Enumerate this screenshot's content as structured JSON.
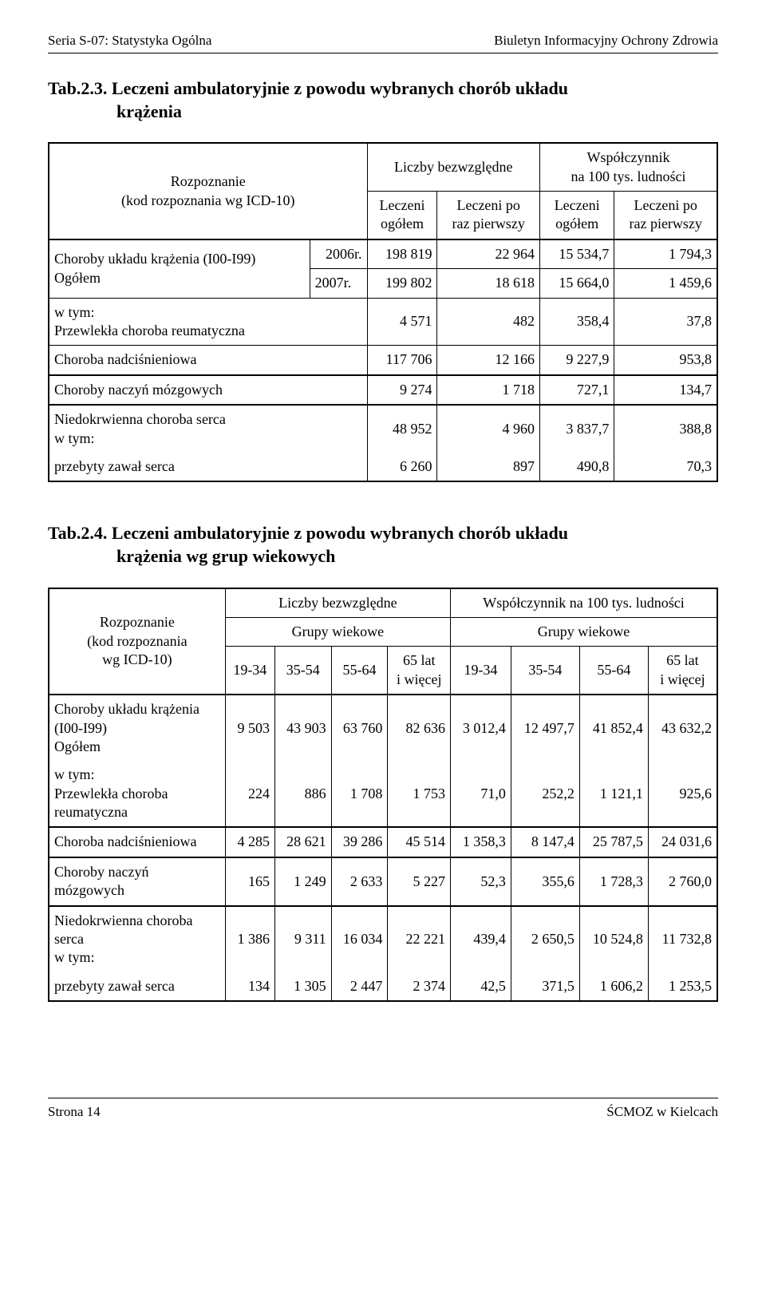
{
  "header": {
    "left": "Seria S-07: Statystyka Ogólna",
    "right": "Biuletyn Informacyjny Ochrony Zdrowia"
  },
  "tab23": {
    "title_line1": "Tab.2.3. Leczeni ambulatoryjnie z powodu wybranych chorób układu",
    "title_line2": "krążenia",
    "col_rozpoznanie1": "Rozpoznanie",
    "col_rozpoznanie2": "(kod rozpoznania wg ICD-10)",
    "col_liczby": "Liczby bezwzględne",
    "col_wsp1": "Współczynnik",
    "col_wsp2": "na 100 tys. ludności",
    "col_leczeni_ogolem1": "Leczeni",
    "col_leczeni_ogolem2": "ogółem",
    "col_leczeni_po1": "Leczeni po",
    "col_leczeni_po2": "raz pierwszy",
    "r1": {
      "label1": "Choroby układu krążenia (I00-I99)",
      "label2": "Ogółem",
      "year1": "2006r.",
      "a1": "198 819",
      "a2": "22 964",
      "a3": "15 534,7",
      "a4": "1 794,3",
      "year2": "2007r.",
      "b1": "199 802",
      "b2": "18 618",
      "b3": "15 664,0",
      "b4": "1 459,6"
    },
    "r2": {
      "label1": "w tym:",
      "label2": "Przewlekła choroba reumatyczna",
      "v1": "4 571",
      "v2": "482",
      "v3": "358,4",
      "v4": "37,8"
    },
    "r3": {
      "label": "Choroba nadciśnieniowa",
      "v1": "117 706",
      "v2": "12 166",
      "v3": "9 227,9",
      "v4": "953,8"
    },
    "r4": {
      "label": "Choroby naczyń mózgowych",
      "v1": "9 274",
      "v2": "1 718",
      "v3": "727,1",
      "v4": "134,7"
    },
    "r5": {
      "label1": "Niedokrwienna choroba serca",
      "label2": "w tym:",
      "v1": "48 952",
      "v2": "4 960",
      "v3": "3 837,7",
      "v4": "388,8"
    },
    "r6": {
      "label": "przebyty zawał serca",
      "v1": "6 260",
      "v2": "897",
      "v3": "490,8",
      "v4": "70,3"
    }
  },
  "tab24": {
    "title_line1": "Tab.2.4. Leczeni ambulatoryjnie z powodu wybranych chorób układu",
    "title_line2": "krążenia wg grup wiekowych",
    "col_rozp1": "Rozpoznanie",
    "col_rozp2": "(kod rozpoznania",
    "col_rozp3": "wg ICD-10)",
    "col_liczby": "Liczby bezwzględne",
    "col_wsp": "Współczynnik na 100 tys. ludności",
    "col_grupy": "Grupy wiekowe",
    "col_grupy2": "Grupy  wiekowe",
    "age1": "19-34",
    "age2": "35-54",
    "age3": "55-64",
    "age4a": "65 lat",
    "age4b": "i więcej",
    "r1": {
      "label1": "Choroby układu krążenia",
      "label2": "(I00-I99)",
      "label3": "Ogółem",
      "v1": "9 503",
      "v2": "43 903",
      "v3": "63 760",
      "v4": "82 636",
      "v5": "3 012,4",
      "v6": "12 497,7",
      "v7": "41 852,4",
      "v8": "43 632,2"
    },
    "r2": {
      "label1": "w tym:",
      "label2": "Przewlekła choroba",
      "label3": "reumatyczna",
      "v1": "224",
      "v2": "886",
      "v3": "1 708",
      "v4": "1 753",
      "v5": "71,0",
      "v6": "252,2",
      "v7": "1 121,1",
      "v8": "925,6"
    },
    "r3": {
      "label": "Choroba nadciśnieniowa",
      "v1": "4 285",
      "v2": "28 621",
      "v3": "39 286",
      "v4": "45 514",
      "v5": "1 358,3",
      "v6": "8 147,4",
      "v7": "25 787,5",
      "v8": "24 031,6"
    },
    "r4": {
      "label1": "Choroby naczyń",
      "label2": "mózgowych",
      "v1": "165",
      "v2": "1 249",
      "v3": "2 633",
      "v4": "5 227",
      "v5": "52,3",
      "v6": "355,6",
      "v7": "1 728,3",
      "v8": "2 760,0"
    },
    "r5": {
      "label1": "Niedokrwienna choroba",
      "label2": "serca",
      "label3": "w tym:",
      "v1": "1 386",
      "v2": "9 311",
      "v3": "16 034",
      "v4": "22 221",
      "v5": "439,4",
      "v6": "2 650,5",
      "v7": "10 524,8",
      "v8": "11 732,8"
    },
    "r6": {
      "label": "przebyty zawał serca",
      "v1": "134",
      "v2": "1 305",
      "v3": "2 447",
      "v4": "2 374",
      "v5": "42,5",
      "v6": "371,5",
      "v7": "1 606,2",
      "v8": "1 253,5"
    }
  },
  "footer": {
    "left": "Strona 14",
    "right": "ŚCMOZ w Kielcach"
  }
}
